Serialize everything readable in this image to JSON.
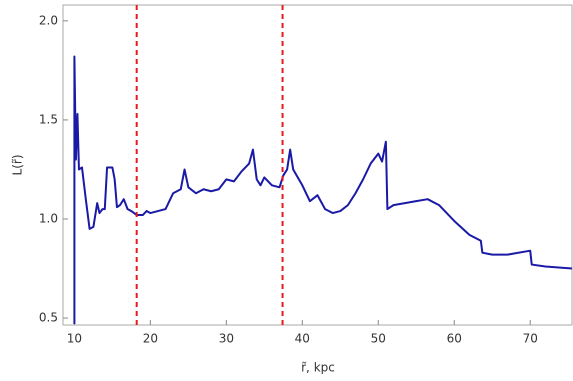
{
  "chart_data": {
    "type": "line",
    "x_label": "r̃, kpc",
    "y_label": "L(r̃)",
    "xlim": [
      8.5,
      75.5
    ],
    "ylim": [
      0.465,
      2.08
    ],
    "xticks": [
      10,
      20,
      30,
      40,
      50,
      60,
      70
    ],
    "yticks": [
      {
        "value": 0.5,
        "label": "0.5"
      },
      {
        "value": 1.0,
        "label": "1.0"
      },
      {
        "value": 1.5,
        "label": "1.5"
      },
      {
        "value": 2.0,
        "label": "2.0"
      }
    ],
    "color": "#1a1aa6",
    "vlines": [
      18.2,
      37.4
    ],
    "vline_color": "#e8191e",
    "x": [
      10.0,
      10.0,
      10.2,
      10.4,
      10.6,
      11,
      11.5,
      12,
      12.5,
      13,
      13.3,
      13.7,
      14,
      14.3,
      15,
      15.3,
      15.6,
      16,
      16.5,
      17,
      17.5,
      18.2,
      19,
      19.5,
      20,
      21,
      22,
      23,
      24,
      24.5,
      25,
      26,
      27,
      28,
      29,
      30,
      31,
      32,
      33,
      33.5,
      34,
      34.5,
      35,
      36,
      37,
      37.5,
      38,
      38.4,
      38.8,
      40,
      41,
      42,
      43,
      44,
      45,
      46,
      47,
      48,
      49,
      50,
      50.5,
      51,
      51.2,
      52,
      55,
      56.5,
      58,
      60,
      62,
      63.5,
      63.7,
      65,
      67,
      70,
      70.2,
      72,
      75.5
    ],
    "values": [
      0.47,
      1.82,
      1.3,
      1.53,
      1.25,
      1.26,
      1.1,
      0.95,
      0.96,
      1.08,
      1.03,
      1.05,
      1.05,
      1.26,
      1.26,
      1.2,
      1.06,
      1.07,
      1.1,
      1.05,
      1.04,
      1.02,
      1.02,
      1.04,
      1.03,
      1.04,
      1.05,
      1.13,
      1.15,
      1.25,
      1.16,
      1.13,
      1.15,
      1.14,
      1.15,
      1.2,
      1.19,
      1.24,
      1.28,
      1.35,
      1.2,
      1.17,
      1.21,
      1.17,
      1.16,
      1.22,
      1.25,
      1.35,
      1.25,
      1.17,
      1.09,
      1.12,
      1.05,
      1.03,
      1.04,
      1.07,
      1.13,
      1.2,
      1.28,
      1.33,
      1.29,
      1.39,
      1.05,
      1.07,
      1.09,
      1.1,
      1.07,
      0.99,
      0.92,
      0.89,
      0.83,
      0.82,
      0.82,
      0.84,
      0.77,
      0.76,
      0.75
    ]
  }
}
